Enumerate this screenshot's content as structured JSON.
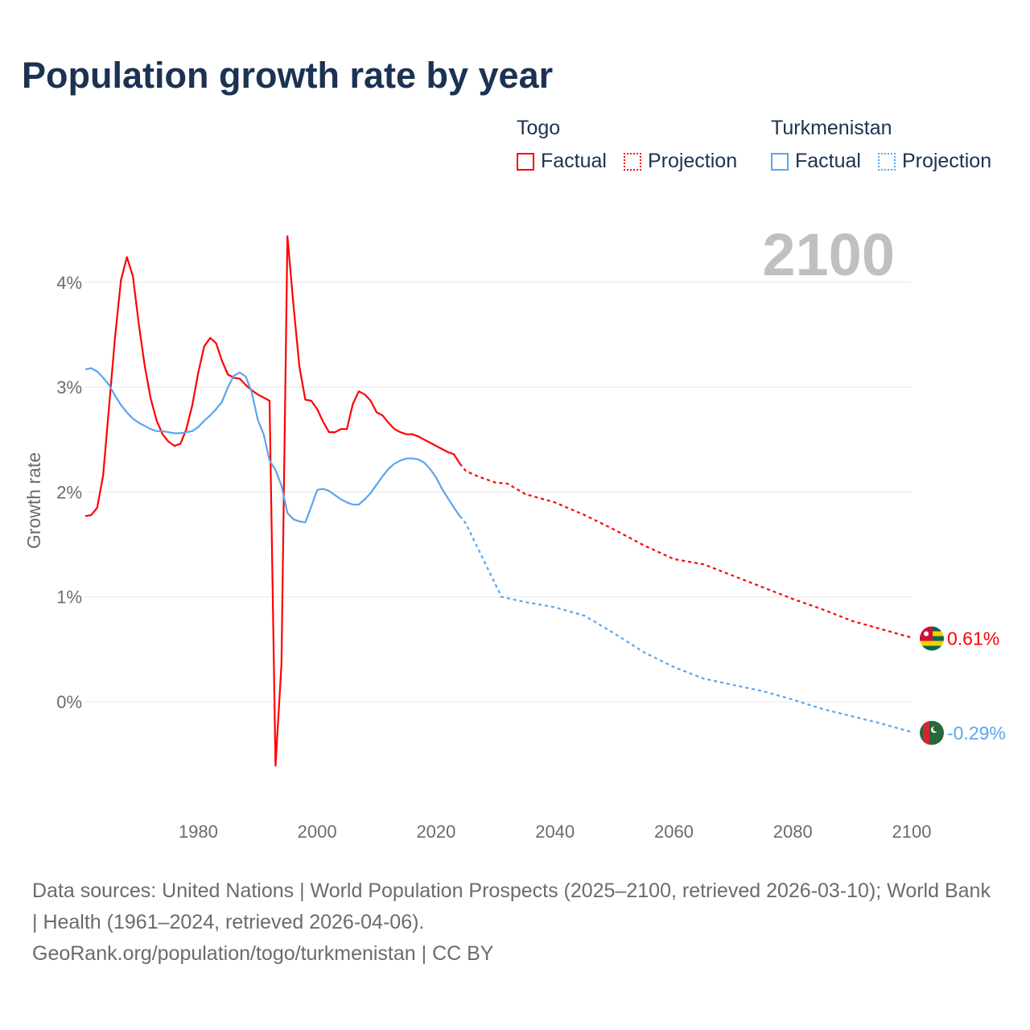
{
  "title": "Population growth rate by year",
  "legend": {
    "groups": [
      {
        "country": "Togo",
        "factual": "Factual",
        "projection": "Projection",
        "color": "#ff0000"
      },
      {
        "country": "Turkmenistan",
        "factual": "Factual",
        "projection": "Projection",
        "color": "#5aa5ee"
      }
    ]
  },
  "footer": {
    "sources": "Data sources: United Nations | World Population Prospects (2025–2100, retrieved 2026-03-10); World Bank | Health (1961–2024, retrieved 2026-04-06).",
    "link": "GeoRank.org/population/togo/turkmenistan | CC BY"
  },
  "chart_data": {
    "type": "line",
    "title": "Population growth rate by year",
    "xlabel": "",
    "ylabel": "Growth rate",
    "year_label": "2100",
    "xlim": [
      1961,
      2100
    ],
    "ylim": [
      -0.75,
      4.8
    ],
    "x_ticks": [
      1980,
      2000,
      2020,
      2040,
      2060,
      2080,
      2100
    ],
    "y_ticks": [
      0,
      1,
      2,
      3,
      4
    ],
    "y_tick_labels": [
      "0%",
      "1%",
      "2%",
      "3%",
      "4%"
    ],
    "grid": true,
    "series": [
      {
        "name": "Togo",
        "color": "#ff0000",
        "end_label": "0.61%",
        "factual": {
          "start_year": 1961,
          "values": [
            1.77,
            1.78,
            1.85,
            2.16,
            2.82,
            3.47,
            4.02,
            4.24,
            4.06,
            3.6,
            3.2,
            2.89,
            2.68,
            2.55,
            2.48,
            2.44,
            2.46,
            2.6,
            2.83,
            3.14,
            3.39,
            3.47,
            3.42,
            3.25,
            3.12,
            3.09,
            3.08,
            3.02,
            2.97,
            2.93,
            2.9,
            2.87,
            -0.61,
            0.36,
            4.44,
            3.79,
            3.2,
            2.88,
            2.87,
            2.79,
            2.67,
            2.57,
            2.57,
            2.6,
            2.6,
            2.84,
            2.96,
            2.93,
            2.87,
            2.76,
            2.73,
            2.66,
            2.6,
            2.57,
            2.55,
            2.55,
            2.53,
            2.5,
            2.47,
            2.44,
            2.41,
            2.38,
            2.36,
            2.27
          ]
        },
        "projection": {
          "years": [
            2024,
            2025,
            2027,
            2030,
            2032,
            2035,
            2040,
            2045,
            2050,
            2055,
            2060,
            2065,
            2070,
            2075,
            2080,
            2085,
            2090,
            2095,
            2100
          ],
          "values": [
            2.27,
            2.2,
            2.15,
            2.09,
            2.08,
            1.98,
            1.9,
            1.78,
            1.64,
            1.49,
            1.36,
            1.31,
            1.2,
            1.09,
            0.98,
            0.88,
            0.77,
            0.69,
            0.61
          ]
        }
      },
      {
        "name": "Turkmenistan",
        "color": "#5aa5ee",
        "end_label": "-0.29%",
        "factual": {
          "start_year": 1961,
          "values": [
            3.17,
            3.18,
            3.15,
            3.09,
            3.02,
            2.92,
            2.83,
            2.76,
            2.7,
            2.66,
            2.63,
            2.6,
            2.58,
            2.58,
            2.57,
            2.56,
            2.56,
            2.57,
            2.58,
            2.62,
            2.68,
            2.73,
            2.79,
            2.86,
            3.0,
            3.11,
            3.14,
            3.1,
            2.95,
            2.69,
            2.55,
            2.3,
            2.21,
            2.06,
            1.8,
            1.74,
            1.72,
            1.71,
            1.86,
            2.02,
            2.03,
            2.01,
            1.97,
            1.93,
            1.9,
            1.88,
            1.88,
            1.93,
            1.99,
            2.07,
            2.15,
            2.22,
            2.27,
            2.3,
            2.32,
            2.32,
            2.31,
            2.28,
            2.22,
            2.14,
            2.03,
            1.94,
            1.85,
            1.77
          ]
        },
        "projection": {
          "years": [
            2024,
            2025,
            2028,
            2031,
            2035,
            2040,
            2045,
            2050,
            2055,
            2060,
            2065,
            2070,
            2075,
            2080,
            2085,
            2090,
            2095,
            2100
          ],
          "values": [
            1.77,
            1.7,
            1.35,
            1.0,
            0.95,
            0.9,
            0.82,
            0.65,
            0.47,
            0.33,
            0.22,
            0.16,
            0.1,
            0.02,
            -0.07,
            -0.14,
            -0.21,
            -0.29
          ]
        }
      }
    ]
  }
}
